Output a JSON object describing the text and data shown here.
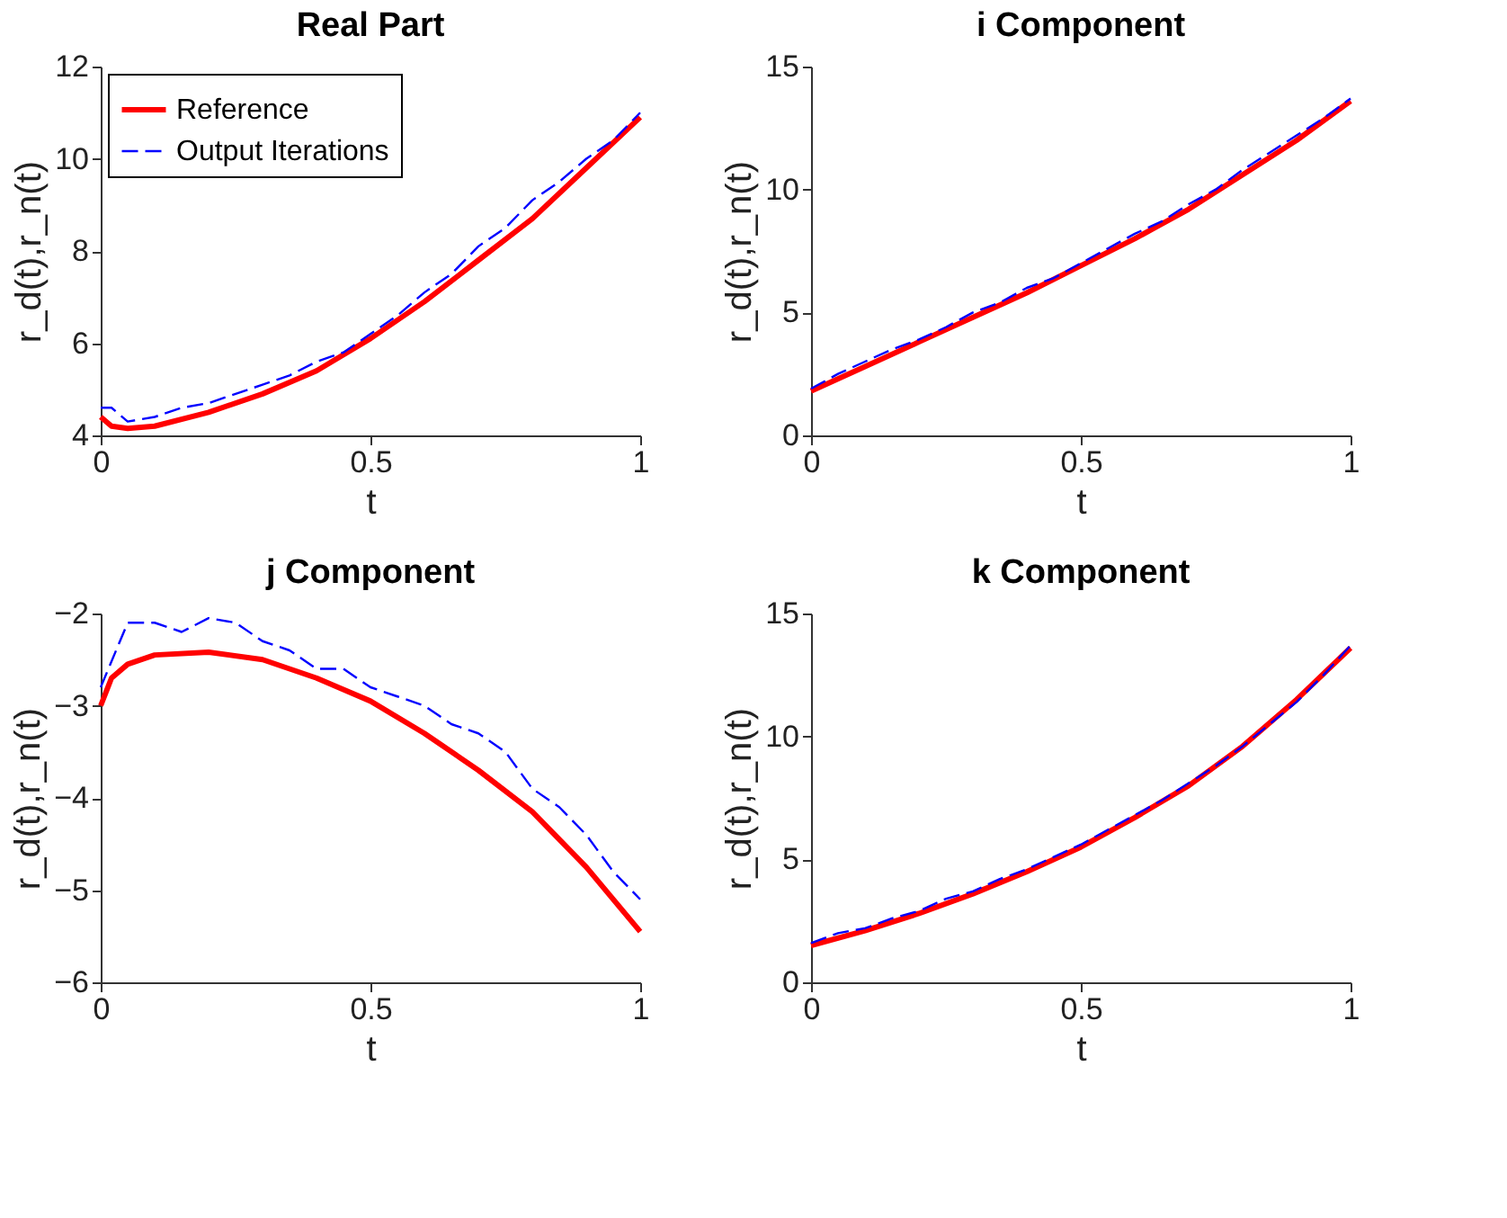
{
  "chart_data": [
    {
      "type": "line",
      "title": "Real Part",
      "xlabel": "t",
      "ylabel": "r_d(t),r_n(t)",
      "xlim": [
        0,
        1
      ],
      "xticks": [
        0,
        0.5,
        1
      ],
      "ylim": [
        4,
        12
      ],
      "yticks": [
        4,
        6,
        8,
        10,
        12
      ],
      "grid": false,
      "legend": "top left",
      "series": [
        {
          "name": "Reference",
          "color": "#ff0000",
          "line_style": "solid",
          "x": [
            0,
            0.02,
            0.05,
            0.1,
            0.2,
            0.3,
            0.4,
            0.5,
            0.6,
            0.7,
            0.8,
            0.9,
            1
          ],
          "values": [
            4.4,
            4.2,
            4.15,
            4.2,
            4.5,
            4.9,
            5.4,
            6.1,
            6.9,
            7.8,
            8.7,
            9.8,
            10.9
          ]
        },
        {
          "name": "Output Iterations",
          "color": "#0000ff",
          "line_style": "dashed",
          "x": [
            0,
            0.02,
            0.05,
            0.1,
            0.15,
            0.2,
            0.25,
            0.3,
            0.35,
            0.4,
            0.45,
            0.5,
            0.55,
            0.6,
            0.65,
            0.7,
            0.75,
            0.8,
            0.85,
            0.9,
            0.95,
            1
          ],
          "values": [
            4.6,
            4.6,
            4.3,
            4.4,
            4.6,
            4.7,
            4.9,
            5.1,
            5.3,
            5.6,
            5.8,
            6.2,
            6.6,
            7.1,
            7.5,
            8.1,
            8.5,
            9.1,
            9.5,
            10.0,
            10.4,
            11.0
          ]
        }
      ]
    },
    {
      "type": "line",
      "title": "i Component",
      "xlabel": "t",
      "ylabel": "r_d(t),r_n(t)",
      "xlim": [
        0,
        1
      ],
      "xticks": [
        0,
        0.5,
        1
      ],
      "ylim": [
        0,
        15
      ],
      "yticks": [
        0,
        5,
        10,
        15
      ],
      "grid": false,
      "legend": false,
      "series": [
        {
          "name": "Reference",
          "color": "#ff0000",
          "line_style": "solid",
          "x": [
            0,
            0.1,
            0.2,
            0.3,
            0.4,
            0.5,
            0.6,
            0.7,
            0.8,
            0.9,
            1
          ],
          "values": [
            1.8,
            2.8,
            3.8,
            4.8,
            5.8,
            6.9,
            8.0,
            9.2,
            10.6,
            12.0,
            13.6
          ]
        },
        {
          "name": "Output Iterations",
          "color": "#0000ff",
          "line_style": "dashed",
          "x": [
            0,
            0.05,
            0.1,
            0.15,
            0.2,
            0.25,
            0.3,
            0.35,
            0.4,
            0.45,
            0.5,
            0.55,
            0.6,
            0.65,
            0.7,
            0.75,
            0.8,
            0.85,
            0.9,
            0.95,
            1
          ],
          "values": [
            1.9,
            2.5,
            3.0,
            3.5,
            3.9,
            4.4,
            5.0,
            5.4,
            6.0,
            6.4,
            7.0,
            7.6,
            8.2,
            8.7,
            9.4,
            10.0,
            10.8,
            11.5,
            12.2,
            12.9,
            13.7
          ]
        }
      ]
    },
    {
      "type": "line",
      "title": "j Component",
      "xlabel": "t",
      "ylabel": "r_d(t),r_n(t)",
      "xlim": [
        0,
        1
      ],
      "xticks": [
        0,
        0.5,
        1
      ],
      "ylim": [
        -6,
        -2
      ],
      "yticks": [
        -6,
        -5,
        -4,
        -3,
        -2
      ],
      "grid": false,
      "legend": false,
      "series": [
        {
          "name": "Reference",
          "color": "#ff0000",
          "line_style": "solid",
          "x": [
            0,
            0.02,
            0.05,
            0.1,
            0.2,
            0.3,
            0.4,
            0.5,
            0.6,
            0.7,
            0.8,
            0.9,
            1
          ],
          "values": [
            -3.0,
            -2.7,
            -2.55,
            -2.45,
            -2.42,
            -2.5,
            -2.7,
            -2.95,
            -3.3,
            -3.7,
            -4.15,
            -4.75,
            -5.45
          ]
        },
        {
          "name": "Output Iterations",
          "color": "#0000ff",
          "line_style": "dashed",
          "x": [
            0,
            0.05,
            0.1,
            0.15,
            0.2,
            0.25,
            0.3,
            0.35,
            0.4,
            0.45,
            0.5,
            0.55,
            0.6,
            0.65,
            0.7,
            0.75,
            0.8,
            0.85,
            0.9,
            0.95,
            1
          ],
          "values": [
            -2.8,
            -2.1,
            -2.1,
            -2.2,
            -2.05,
            -2.1,
            -2.3,
            -2.4,
            -2.6,
            -2.6,
            -2.8,
            -2.9,
            -3.0,
            -3.2,
            -3.3,
            -3.5,
            -3.9,
            -4.1,
            -4.4,
            -4.8,
            -5.1
          ]
        }
      ]
    },
    {
      "type": "line",
      "title": "k Component",
      "xlabel": "t",
      "ylabel": "r_d(t),r_n(t)",
      "xlim": [
        0,
        1
      ],
      "xticks": [
        0,
        0.5,
        1
      ],
      "ylim": [
        0,
        15
      ],
      "yticks": [
        0,
        5,
        10,
        15
      ],
      "grid": false,
      "legend": false,
      "series": [
        {
          "name": "Reference",
          "color": "#ff0000",
          "line_style": "solid",
          "x": [
            0,
            0.1,
            0.2,
            0.3,
            0.4,
            0.5,
            0.6,
            0.7,
            0.8,
            0.9,
            1
          ],
          "values": [
            1.5,
            2.1,
            2.8,
            3.6,
            4.5,
            5.5,
            6.7,
            8.0,
            9.6,
            11.5,
            13.6
          ]
        },
        {
          "name": "Output Iterations",
          "color": "#0000ff",
          "line_style": "dashed",
          "x": [
            0,
            0.05,
            0.1,
            0.15,
            0.2,
            0.25,
            0.3,
            0.35,
            0.4,
            0.45,
            0.5,
            0.55,
            0.6,
            0.65,
            0.7,
            0.75,
            0.8,
            0.85,
            0.9,
            0.95,
            1
          ],
          "values": [
            1.6,
            2.0,
            2.2,
            2.6,
            2.9,
            3.4,
            3.7,
            4.2,
            4.6,
            5.1,
            5.6,
            6.2,
            6.8,
            7.4,
            8.1,
            8.8,
            9.6,
            10.5,
            11.4,
            12.5,
            13.7
          ]
        }
      ]
    }
  ]
}
